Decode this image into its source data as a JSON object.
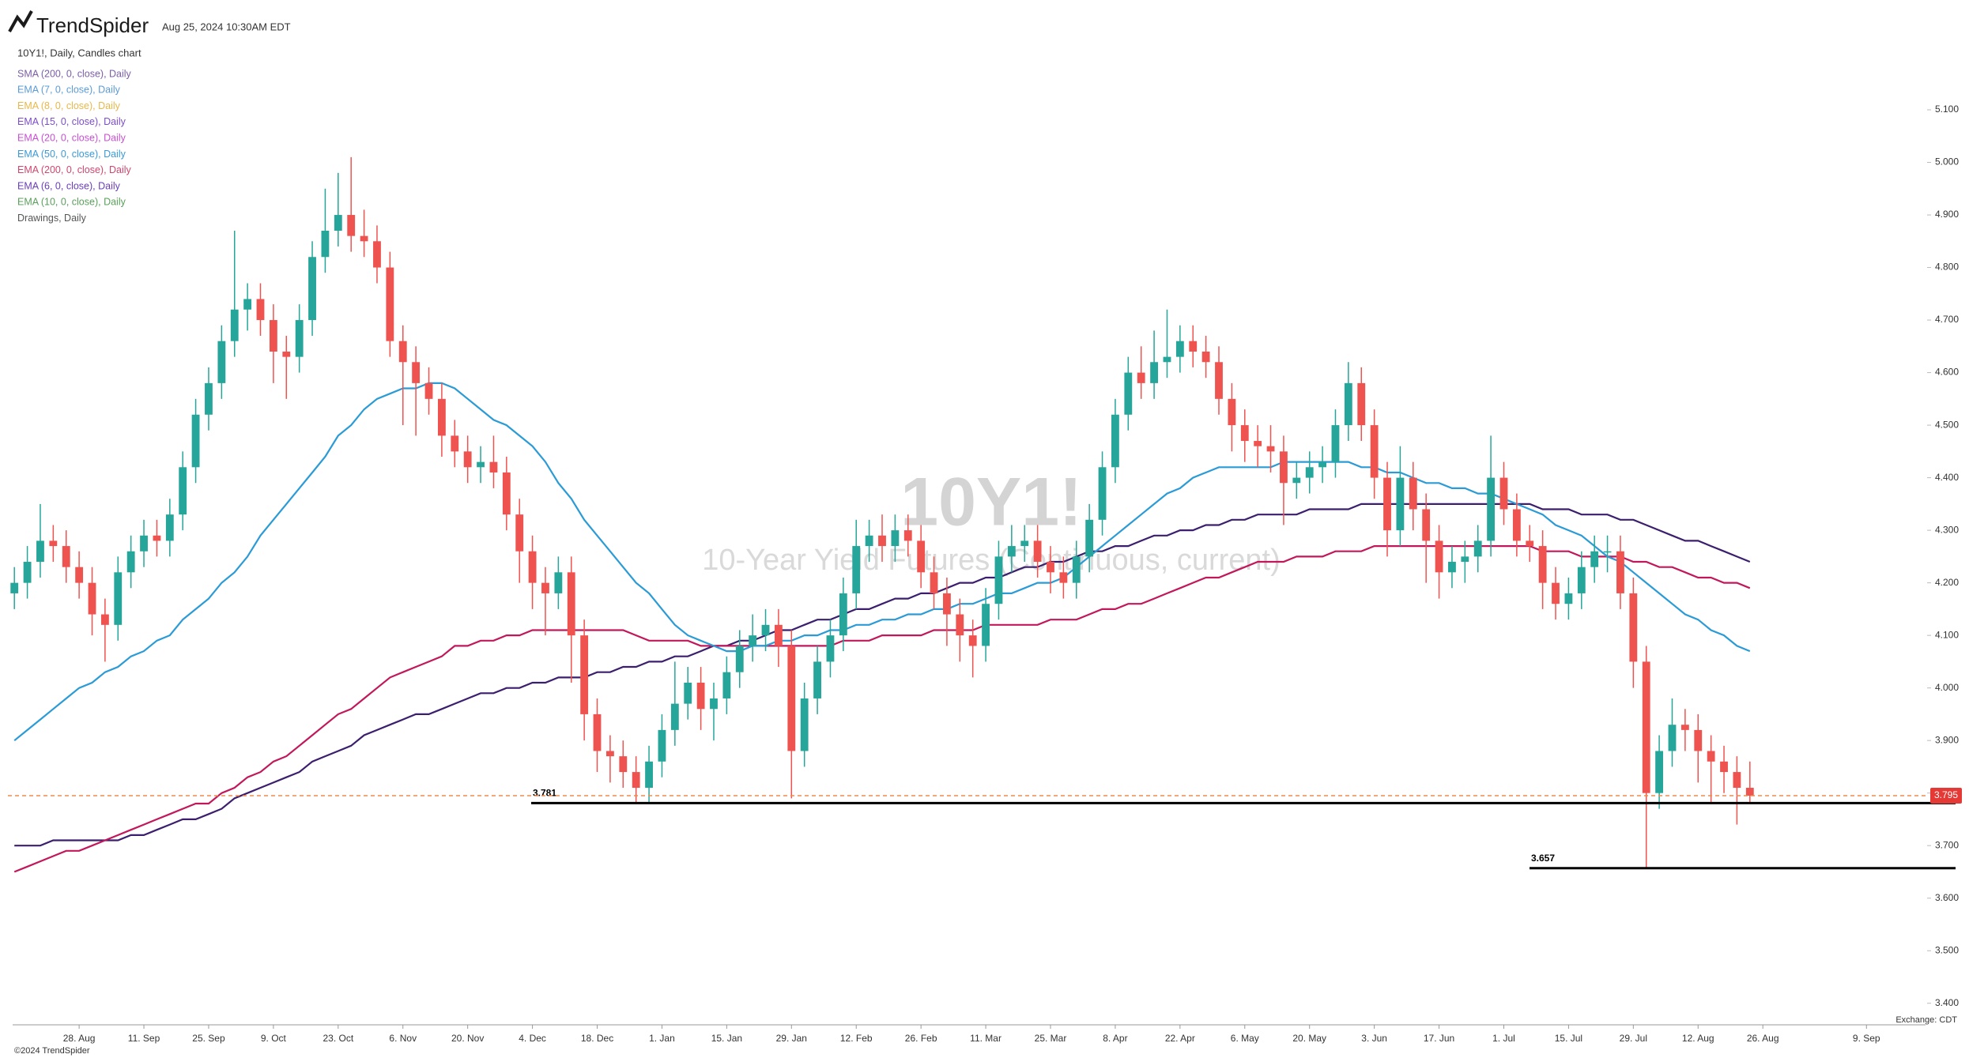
{
  "header": {
    "logo": "TrendSpider",
    "timestamp": "Aug 25, 2024 10:30AM EDT"
  },
  "footer": {
    "exchange": "Exchange: CDT",
    "copyright": "©2024 TrendSpider"
  },
  "chart_data": {
    "type": "candlestick",
    "title": "10Y1!, Daily, Candles chart",
    "watermark": "10Y1!",
    "subtitle": "10-Year Yield Futures (Continuous, current)",
    "legend": [
      {
        "name": "SMA (200, 0, close), Daily",
        "color": "#7b5ea7"
      },
      {
        "name": "EMA (7, 0, close), Daily",
        "color": "#5b9bd5"
      },
      {
        "name": "EMA (8, 0, close), Daily",
        "color": "#e8b84a"
      },
      {
        "name": "EMA (15, 0, close), Daily",
        "color": "#7c4dcc"
      },
      {
        "name": "EMA (20, 0, close), Daily",
        "color": "#c94fd4"
      },
      {
        "name": "EMA (50, 0, close), Daily",
        "color": "#3a9ad9"
      },
      {
        "name": "EMA (200, 0, close), Daily",
        "color": "#d0466e"
      },
      {
        "name": "EMA (6, 0, close), Daily",
        "color": "#6a3db8"
      },
      {
        "name": "EMA (10, 0, close), Daily",
        "color": "#5aa05a"
      },
      {
        "name": "Drawings, Daily",
        "color": "#555555"
      }
    ],
    "up_color": "#26a69a",
    "down_color": "#ef5350",
    "categories": [
      null,
      null,
      null,
      null,
      null,
      "28. Aug",
      null,
      null,
      null,
      null,
      "11. Sep",
      null,
      null,
      null,
      null,
      "25. Sep",
      null,
      null,
      null,
      null,
      "9. Oct",
      null,
      null,
      null,
      null,
      "23. Oct",
      null,
      null,
      null,
      null,
      "6. Nov",
      null,
      null,
      null,
      null,
      "20. Nov",
      null,
      null,
      null,
      null,
      "4. Dec",
      null,
      null,
      null,
      null,
      "18. Dec",
      null,
      null,
      null,
      null,
      "1. Jan",
      null,
      null,
      null,
      null,
      "15. Jan",
      null,
      null,
      null,
      null,
      "29. Jan",
      null,
      null,
      null,
      null,
      "12. Feb",
      null,
      null,
      null,
      null,
      "26. Feb",
      null,
      null,
      null,
      null,
      "11. Mar",
      null,
      null,
      null,
      null,
      "25. Mar",
      null,
      null,
      null,
      null,
      "8. Apr",
      null,
      null,
      null,
      null,
      "22. Apr",
      null,
      null,
      null,
      null,
      "6. May",
      null,
      null,
      null,
      null,
      "20. May",
      null,
      null,
      null,
      null,
      "3. Jun",
      null,
      null,
      null,
      null,
      "17. Jun",
      null,
      null,
      null,
      null,
      "1. Jul",
      null,
      null,
      null,
      null,
      "15. Jul",
      null,
      null,
      null,
      null,
      "29. Jul",
      null,
      null,
      null,
      null,
      "12. Aug",
      null,
      null,
      null,
      null,
      "26. Aug",
      null,
      null,
      null,
      null,
      null,
      null,
      null,
      "9. Sep",
      null,
      null,
      null,
      null
    ],
    "open": [
      4.18,
      4.2,
      4.24,
      4.28,
      4.27,
      4.23,
      4.2,
      4.14,
      4.12,
      4.22,
      4.26,
      4.29,
      4.28,
      4.33,
      4.42,
      4.52,
      4.58,
      4.66,
      4.72,
      4.74,
      4.7,
      4.64,
      4.63,
      4.7,
      4.82,
      4.87,
      4.9,
      4.86,
      4.85,
      4.8,
      4.66,
      4.62,
      4.58,
      4.55,
      4.48,
      4.45,
      4.42,
      4.43,
      4.41,
      4.33,
      4.26,
      4.2,
      4.18,
      4.22,
      4.1,
      3.95,
      3.88,
      3.87,
      3.84,
      3.81,
      3.86,
      3.92,
      3.97,
      4.01,
      3.96,
      3.98,
      4.03,
      4.08,
      4.1,
      4.12,
      4.08,
      3.88,
      3.98,
      4.05,
      4.1,
      4.18,
      4.27,
      4.29,
      4.27,
      4.3,
      4.28,
      4.22,
      4.18,
      4.14,
      4.1,
      4.08,
      4.16,
      4.25,
      4.27,
      4.28,
      4.24,
      4.22,
      4.2,
      4.25,
      4.32,
      4.42,
      4.52,
      4.6,
      4.58,
      4.62,
      4.63,
      4.66,
      4.64,
      4.62,
      4.55,
      4.5,
      4.47,
      4.46,
      4.45,
      4.39,
      4.4,
      4.42,
      4.43,
      4.5,
      4.58,
      4.5,
      4.4,
      4.3,
      4.4,
      4.34,
      4.28,
      4.22,
      4.24,
      4.25,
      4.28,
      4.4,
      4.34,
      4.28,
      4.27,
      4.2,
      4.16,
      4.18,
      4.23,
      4.26,
      4.26,
      4.18,
      4.05,
      3.8,
      3.88,
      3.93,
      3.92,
      3.88,
      3.86,
      3.84,
      3.81,
      null,
      null,
      null,
      null,
      null,
      null,
      null,
      null,
      null,
      null,
      null,
      null,
      null
    ],
    "high": [
      4.23,
      4.27,
      4.35,
      4.31,
      4.3,
      4.26,
      4.23,
      4.17,
      4.25,
      4.29,
      4.32,
      4.32,
      4.36,
      4.45,
      4.55,
      4.61,
      4.69,
      4.87,
      4.77,
      4.77,
      4.73,
      4.67,
      4.73,
      4.85,
      4.95,
      4.98,
      5.01,
      4.91,
      4.88,
      4.83,
      4.69,
      4.65,
      4.61,
      4.58,
      4.51,
      4.48,
      4.46,
      4.48,
      4.44,
      4.36,
      4.29,
      4.23,
      4.25,
      4.25,
      4.13,
      3.98,
      3.91,
      3.9,
      3.87,
      3.89,
      3.95,
      4.05,
      4.04,
      4.04,
      4.01,
      4.06,
      4.11,
      4.14,
      4.15,
      4.15,
      4.11,
      4.01,
      4.08,
      4.13,
      4.21,
      4.32,
      4.32,
      4.33,
      4.33,
      4.33,
      4.31,
      4.25,
      4.21,
      4.17,
      4.13,
      4.19,
      4.28,
      4.31,
      4.31,
      4.31,
      4.27,
      4.25,
      4.28,
      4.35,
      4.45,
      4.55,
      4.63,
      4.65,
      4.68,
      4.72,
      4.69,
      4.69,
      4.67,
      4.65,
      4.58,
      4.53,
      4.5,
      4.5,
      4.48,
      4.43,
      4.45,
      4.46,
      4.53,
      4.62,
      4.61,
      4.53,
      4.43,
      4.46,
      4.43,
      4.37,
      4.31,
      4.27,
      4.28,
      4.31,
      4.48,
      4.43,
      4.37,
      4.31,
      4.3,
      4.23,
      4.21,
      4.26,
      4.29,
      4.29,
      4.29,
      4.21,
      4.08,
      3.91,
      3.98,
      3.96,
      3.95,
      3.91,
      3.89,
      3.87,
      3.86,
      null,
      null,
      null,
      null,
      null,
      null,
      null,
      null,
      null,
      null,
      null,
      null,
      null
    ],
    "low": [
      4.15,
      4.17,
      4.21,
      4.24,
      4.2,
      4.17,
      4.1,
      4.05,
      4.09,
      4.19,
      4.23,
      4.25,
      4.25,
      4.3,
      4.39,
      4.49,
      4.55,
      4.63,
      4.68,
      4.67,
      4.58,
      4.55,
      4.6,
      4.67,
      4.79,
      4.84,
      4.83,
      4.82,
      4.77,
      4.63,
      4.5,
      4.48,
      4.52,
      4.44,
      4.42,
      4.39,
      4.39,
      4.38,
      4.3,
      4.2,
      4.15,
      4.1,
      4.15,
      4.01,
      3.9,
      3.84,
      3.82,
      3.81,
      3.781,
      3.78,
      3.83,
      3.89,
      3.94,
      3.92,
      3.9,
      3.95,
      4.0,
      4.05,
      4.07,
      4.04,
      3.79,
      3.85,
      3.95,
      4.02,
      4.07,
      4.15,
      4.24,
      4.24,
      4.24,
      4.25,
      4.19,
      4.15,
      4.08,
      4.05,
      4.02,
      4.05,
      4.13,
      4.22,
      4.24,
      4.21,
      4.18,
      4.17,
      4.17,
      4.22,
      4.29,
      4.39,
      4.49,
      4.55,
      4.55,
      4.59,
      4.6,
      4.61,
      4.59,
      4.52,
      4.45,
      4.43,
      4.42,
      4.41,
      4.31,
      4.36,
      4.37,
      4.39,
      4.4,
      4.47,
      4.47,
      4.36,
      4.25,
      4.27,
      4.3,
      4.2,
      4.17,
      4.19,
      4.2,
      4.22,
      4.25,
      4.31,
      4.25,
      4.24,
      4.15,
      4.13,
      4.13,
      4.15,
      4.2,
      4.22,
      4.15,
      4.0,
      3.657,
      3.77,
      3.85,
      3.88,
      3.82,
      3.78,
      3.8,
      3.74,
      3.78,
      null,
      null,
      null,
      null,
      null,
      null,
      null,
      null,
      null,
      null,
      null,
      null,
      null
    ],
    "close": [
      4.2,
      4.24,
      4.28,
      4.27,
      4.23,
      4.2,
      4.14,
      4.12,
      4.22,
      4.26,
      4.29,
      4.28,
      4.33,
      4.42,
      4.52,
      4.58,
      4.66,
      4.72,
      4.74,
      4.7,
      4.64,
      4.63,
      4.7,
      4.82,
      4.87,
      4.9,
      4.86,
      4.85,
      4.8,
      4.66,
      4.62,
      4.58,
      4.55,
      4.48,
      4.45,
      4.42,
      4.43,
      4.41,
      4.33,
      4.26,
      4.2,
      4.18,
      4.22,
      4.1,
      3.95,
      3.88,
      3.87,
      3.84,
      3.81,
      3.86,
      3.92,
      3.97,
      4.01,
      3.96,
      3.98,
      4.03,
      4.08,
      4.1,
      4.12,
      4.08,
      3.88,
      3.98,
      4.05,
      4.1,
      4.18,
      4.27,
      4.29,
      4.27,
      4.3,
      4.28,
      4.22,
      4.18,
      4.14,
      4.1,
      4.08,
      4.16,
      4.25,
      4.27,
      4.28,
      4.24,
      4.22,
      4.2,
      4.25,
      4.32,
      4.42,
      4.52,
      4.6,
      4.58,
      4.62,
      4.63,
      4.66,
      4.64,
      4.62,
      4.55,
      4.5,
      4.47,
      4.46,
      4.45,
      4.39,
      4.4,
      4.42,
      4.43,
      4.5,
      4.58,
      4.5,
      4.4,
      4.3,
      4.4,
      4.34,
      4.28,
      4.22,
      4.24,
      4.25,
      4.28,
      4.4,
      4.34,
      4.28,
      4.27,
      4.2,
      4.16,
      4.18,
      4.23,
      4.26,
      4.26,
      4.18,
      4.05,
      3.8,
      3.88,
      3.93,
      3.92,
      3.88,
      3.86,
      3.84,
      3.81,
      3.795,
      null,
      null,
      null,
      null,
      null,
      null,
      null,
      null,
      null,
      null,
      null,
      null,
      null
    ],
    "series": [
      {
        "color": "#3b1f6e",
        "values": [
          3.7,
          3.7,
          3.7,
          3.71,
          3.71,
          3.71,
          3.71,
          3.71,
          3.71,
          3.72,
          3.72,
          3.73,
          3.74,
          3.75,
          3.75,
          3.76,
          3.77,
          3.79,
          3.8,
          3.81,
          3.82,
          3.83,
          3.84,
          3.86,
          3.87,
          3.88,
          3.89,
          3.91,
          3.92,
          3.93,
          3.94,
          3.95,
          3.95,
          3.96,
          3.97,
          3.98,
          3.99,
          3.99,
          4.0,
          4.0,
          4.01,
          4.01,
          4.02,
          4.02,
          4.02,
          4.03,
          4.03,
          4.04,
          4.04,
          4.05,
          4.05,
          4.06,
          4.06,
          4.07,
          4.08,
          4.08,
          4.09,
          4.09,
          4.1,
          4.11,
          4.11,
          4.12,
          4.13,
          4.13,
          4.14,
          4.15,
          4.15,
          4.16,
          4.17,
          4.17,
          4.18,
          4.18,
          4.19,
          4.2,
          4.2,
          4.21,
          4.21,
          4.22,
          4.23,
          4.23,
          4.24,
          4.24,
          4.25,
          4.26,
          4.26,
          4.27,
          4.27,
          4.28,
          4.29,
          4.29,
          4.3,
          4.3,
          4.31,
          4.31,
          4.32,
          4.32,
          4.33,
          4.33,
          4.33,
          4.33,
          4.34,
          4.34,
          4.34,
          4.34,
          4.35,
          4.35,
          4.35,
          4.35,
          4.35,
          4.35,
          4.35,
          4.35,
          4.35,
          4.35,
          4.35,
          4.35,
          4.35,
          4.35,
          4.34,
          4.34,
          4.34,
          4.33,
          4.33,
          4.33,
          4.32,
          4.32,
          4.31,
          4.3,
          4.29,
          4.28,
          4.28,
          4.27,
          4.26,
          4.25,
          4.24,
          null,
          null,
          null,
          null,
          null,
          null,
          null,
          null,
          null,
          null,
          null,
          null,
          null
        ]
      },
      {
        "color": "#c2185b",
        "values": [
          3.65,
          3.66,
          3.67,
          3.68,
          3.69,
          3.69,
          3.7,
          3.71,
          3.72,
          3.73,
          3.74,
          3.75,
          3.76,
          3.77,
          3.78,
          3.78,
          3.8,
          3.81,
          3.83,
          3.84,
          3.86,
          3.87,
          3.89,
          3.91,
          3.93,
          3.95,
          3.96,
          3.98,
          4.0,
          4.02,
          4.03,
          4.04,
          4.05,
          4.06,
          4.08,
          4.08,
          4.09,
          4.09,
          4.1,
          4.1,
          4.11,
          4.11,
          4.11,
          4.11,
          4.11,
          4.11,
          4.11,
          4.11,
          4.1,
          4.09,
          4.09,
          4.09,
          4.09,
          4.08,
          4.08,
          4.08,
          4.08,
          4.08,
          4.08,
          4.08,
          4.08,
          4.08,
          4.08,
          4.08,
          4.09,
          4.09,
          4.09,
          4.1,
          4.1,
          4.1,
          4.1,
          4.11,
          4.11,
          4.11,
          4.11,
          4.12,
          4.12,
          4.12,
          4.12,
          4.12,
          4.13,
          4.13,
          4.13,
          4.14,
          4.15,
          4.15,
          4.16,
          4.16,
          4.17,
          4.18,
          4.19,
          4.2,
          4.21,
          4.21,
          4.22,
          4.23,
          4.24,
          4.24,
          4.24,
          4.25,
          4.25,
          4.25,
          4.26,
          4.26,
          4.26,
          4.27,
          4.27,
          4.27,
          4.27,
          4.27,
          4.27,
          4.27,
          4.27,
          4.27,
          4.27,
          4.27,
          4.27,
          4.27,
          4.26,
          4.26,
          4.26,
          4.25,
          4.25,
          4.25,
          4.25,
          4.24,
          4.24,
          4.23,
          4.23,
          4.22,
          4.21,
          4.21,
          4.2,
          4.2,
          4.19,
          null,
          null,
          null,
          null,
          null,
          null,
          null,
          null,
          null,
          null,
          null,
          null,
          null
        ]
      },
      {
        "color": "#2a9bd6",
        "values": [
          3.9,
          3.92,
          3.94,
          3.96,
          3.98,
          4.0,
          4.01,
          4.03,
          4.04,
          4.06,
          4.07,
          4.09,
          4.1,
          4.13,
          4.15,
          4.17,
          4.2,
          4.22,
          4.25,
          4.29,
          4.32,
          4.35,
          4.38,
          4.41,
          4.44,
          4.48,
          4.5,
          4.53,
          4.55,
          4.56,
          4.57,
          4.57,
          4.58,
          4.58,
          4.57,
          4.55,
          4.53,
          4.51,
          4.5,
          4.48,
          4.46,
          4.43,
          4.39,
          4.36,
          4.32,
          4.29,
          4.26,
          4.23,
          4.2,
          4.18,
          4.15,
          4.12,
          4.1,
          4.09,
          4.08,
          4.07,
          4.07,
          4.08,
          4.08,
          4.09,
          4.09,
          4.1,
          4.1,
          4.11,
          4.11,
          4.12,
          4.12,
          4.13,
          4.13,
          4.14,
          4.14,
          4.15,
          4.15,
          4.16,
          4.16,
          4.17,
          4.18,
          4.18,
          4.19,
          4.2,
          4.2,
          4.21,
          4.23,
          4.25,
          4.27,
          4.29,
          4.31,
          4.33,
          4.35,
          4.37,
          4.38,
          4.4,
          4.41,
          4.42,
          4.42,
          4.42,
          4.42,
          4.42,
          4.43,
          4.43,
          4.43,
          4.43,
          4.43,
          4.43,
          4.42,
          4.42,
          4.41,
          4.41,
          4.4,
          4.39,
          4.39,
          4.38,
          4.38,
          4.37,
          4.37,
          4.36,
          4.35,
          4.34,
          4.33,
          4.31,
          4.3,
          4.29,
          4.27,
          4.25,
          4.24,
          4.22,
          4.2,
          4.18,
          4.16,
          4.14,
          4.13,
          4.11,
          4.1,
          4.08,
          4.07,
          null,
          null,
          null,
          null,
          null,
          null,
          null,
          null,
          null,
          null,
          null,
          null,
          null
        ]
      }
    ],
    "levels": [
      3.781,
      3.657
    ],
    "last": 3.795,
    "ylim": [
      3.359,
      5.309
    ],
    "yticks": [
      {
        "value": 3.4,
        "label": "3.400"
      },
      {
        "value": 3.5,
        "label": "3.500"
      },
      {
        "value": 3.6,
        "label": "3.600"
      },
      {
        "value": 3.7,
        "label": "3.700"
      },
      {
        "value": 3.8,
        "label": "3.800"
      },
      {
        "value": 3.9,
        "label": "3.900"
      },
      {
        "value": 4.0,
        "label": "4.000"
      },
      {
        "value": 4.1,
        "label": "4.100"
      },
      {
        "value": 4.2,
        "label": "4.200"
      },
      {
        "value": 4.3,
        "label": "4.300"
      },
      {
        "value": 4.4,
        "label": "4.400"
      },
      {
        "value": 4.5,
        "label": "4.500"
      },
      {
        "value": 4.6,
        "label": "4.600"
      },
      {
        "value": 4.7,
        "label": "4.700"
      },
      {
        "value": 4.8,
        "label": "4.800"
      },
      {
        "value": 4.9,
        "label": "4.900"
      },
      {
        "value": 5.0,
        "label": "5.000"
      },
      {
        "value": 5.1,
        "label": "5.100"
      }
    ],
    "grid": false
  }
}
